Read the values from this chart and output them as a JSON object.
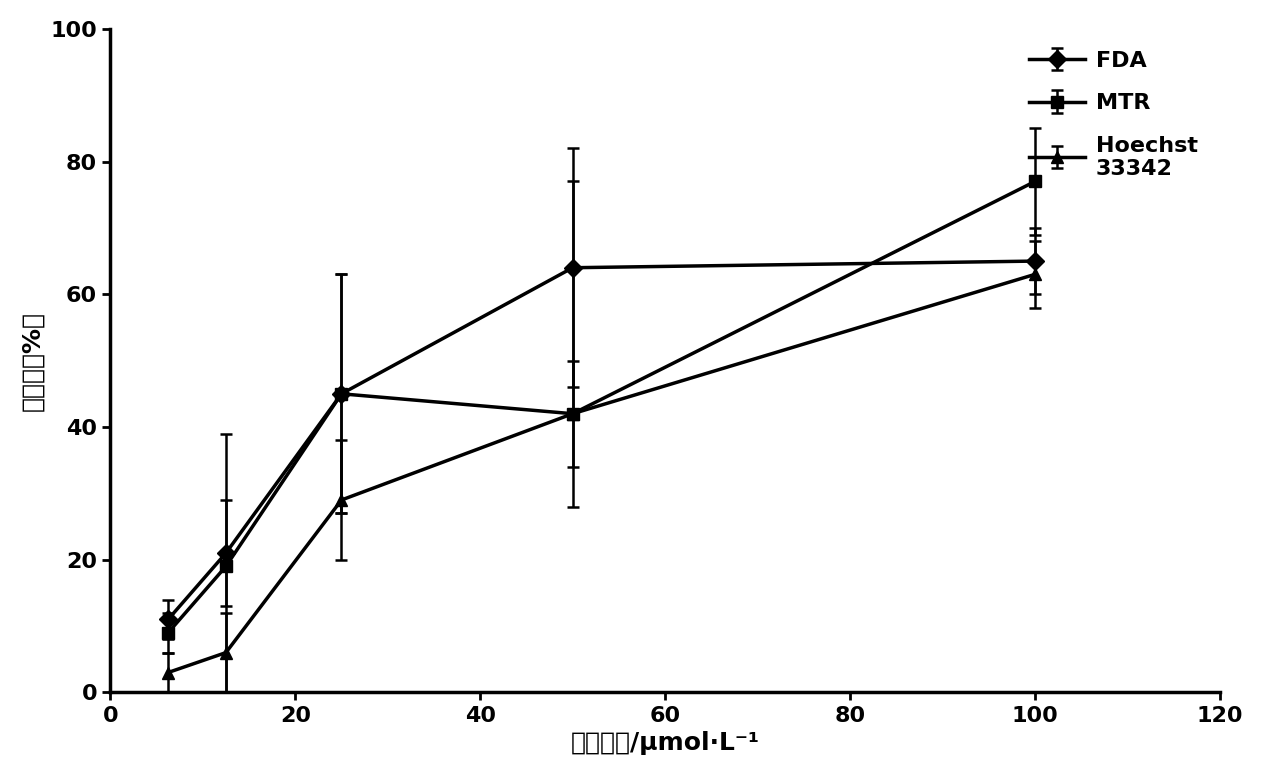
{
  "x": [
    6.25,
    12.5,
    25,
    50,
    100
  ],
  "FDA": {
    "y": [
      11,
      21,
      45,
      64,
      65
    ],
    "yerr_lo": [
      3,
      8,
      18,
      18,
      5
    ],
    "yerr_hi": [
      3,
      8,
      18,
      18,
      5
    ],
    "marker": "D",
    "label": "FDA"
  },
  "MTR": {
    "y": [
      9,
      19,
      45,
      42,
      77
    ],
    "yerr_lo": [
      3,
      20,
      18,
      14,
      8
    ],
    "yerr_hi": [
      3,
      20,
      18,
      35,
      8
    ],
    "marker": "s",
    "label": "MTR"
  },
  "Hoechst": {
    "y": [
      3,
      6,
      29,
      42,
      63
    ],
    "yerr_lo": [
      3,
      6,
      9,
      8,
      5
    ],
    "yerr_hi": [
      3,
      6,
      9,
      8,
      5
    ],
    "marker": "^",
    "label": "Hoechst\n33342"
  },
  "xlim": [
    0,
    120
  ],
  "ylim": [
    0,
    100
  ],
  "xticks": [
    0,
    20,
    40,
    60,
    80,
    100,
    120
  ],
  "yticks": [
    0,
    20,
    40,
    60,
    80,
    100
  ],
  "xlabel": "异槟皮素/μmol·L⁻¹",
  "ylabel": "保护率（%）",
  "line_color": "#000000",
  "line_width": 2.5,
  "marker_size": 9,
  "capsize": 4,
  "elinewidth": 1.8
}
